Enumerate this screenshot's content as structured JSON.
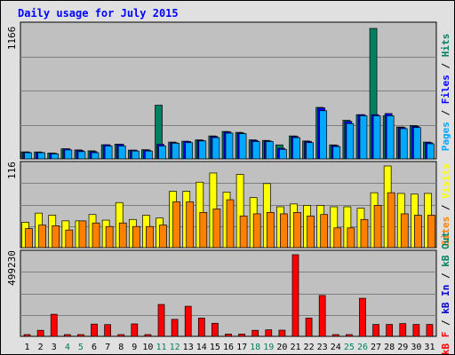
{
  "title": "Daily usage for July 2015",
  "colors": {
    "pages": "#00a8ff",
    "files": "#0000ff",
    "hits": "#008060",
    "visits": "#ffff00",
    "sites": "#ff8000",
    "kb_in": "#0000cc",
    "kb_out": "#008060",
    "kb_f": "#ff0000",
    "plot_bg": "#c0c0c0",
    "frame_bg": "#e0e0e0",
    "weekend_label": "#008060"
  },
  "chart_data": [
    {
      "type": "bar",
      "title": "",
      "ylabel": "1166",
      "ylim": [
        0,
        1166
      ],
      "categories": [
        "1",
        "2",
        "3",
        "4",
        "5",
        "6",
        "7",
        "8",
        "9",
        "10",
        "11",
        "12",
        "13",
        "14",
        "15",
        "16",
        "17",
        "18",
        "19",
        "20",
        "21",
        "22",
        "23",
        "24",
        "25",
        "26",
        "27",
        "28",
        "29",
        "30",
        "31"
      ],
      "series": [
        {
          "name": "Hits",
          "values": [
            62,
            62,
            52,
            90,
            80,
            72,
            126,
            132,
            78,
            82,
            480,
            150,
            158,
            170,
            205,
            245,
            237,
            170,
            165,
            125,
            205,
            160,
            460,
            125,
            345,
            395,
            1166,
            385,
            285,
            298,
            150
          ]
        },
        {
          "name": "Files",
          "values": [
            62,
            58,
            50,
            90,
            75,
            65,
            126,
            130,
            78,
            78,
            130,
            145,
            155,
            165,
            200,
            240,
            230,
            165,
            160,
            95,
            200,
            155,
            455,
            120,
            335,
            395,
            395,
            405,
            280,
            290,
            145
          ]
        },
        {
          "name": "Pages",
          "values": [
            55,
            55,
            45,
            80,
            65,
            55,
            115,
            115,
            70,
            70,
            115,
            140,
            145,
            160,
            190,
            230,
            225,
            155,
            155,
            85,
            190,
            145,
            430,
            110,
            315,
            385,
            385,
            385,
            270,
            280,
            135
          ]
        }
      ],
      "legend": [
        "Pages",
        "Files",
        "Hits"
      ]
    },
    {
      "type": "bar",
      "title": "",
      "ylabel": "116",
      "ylim": [
        0,
        116
      ],
      "categories": [
        "1",
        "2",
        "3",
        "4",
        "5",
        "6",
        "7",
        "8",
        "9",
        "10",
        "11",
        "12",
        "13",
        "14",
        "15",
        "16",
        "17",
        "18",
        "19",
        "20",
        "21",
        "22",
        "23",
        "24",
        "25",
        "26",
        "27",
        "28",
        "29",
        "30",
        "31"
      ],
      "series": [
        {
          "name": "Visits",
          "values": [
            36,
            49,
            46,
            38,
            38,
            47,
            39,
            64,
            40,
            46,
            42,
            80,
            80,
            93,
            106,
            79,
            104,
            71,
            91,
            58,
            62,
            60,
            60,
            58,
            58,
            56,
            78,
            116,
            77,
            76,
            77
          ]
        },
        {
          "name": "Sites",
          "values": [
            27,
            32,
            31,
            25,
            38,
            35,
            30,
            35,
            30,
            30,
            32,
            65,
            65,
            50,
            55,
            68,
            45,
            48,
            50,
            48,
            50,
            45,
            47,
            28,
            28,
            40,
            60,
            78,
            48,
            46,
            46
          ]
        }
      ],
      "legend": [
        "Sites",
        "Visits"
      ]
    },
    {
      "type": "bar",
      "title": "",
      "ylabel": "499230",
      "ylim": [
        0,
        499230
      ],
      "categories": [
        "1",
        "2",
        "3",
        "4",
        "5",
        "6",
        "7",
        "8",
        "9",
        "10",
        "11",
        "12",
        "13",
        "14",
        "15",
        "16",
        "17",
        "18",
        "19",
        "20",
        "21",
        "22",
        "23",
        "24",
        "25",
        "26",
        "27",
        "28",
        "29",
        "30",
        "31"
      ],
      "series": [
        {
          "name": "KBytes",
          "values": [
            0,
            37000,
            135000,
            0,
            0,
            75000,
            72000,
            0,
            76000,
            0,
            195000,
            104000,
            184000,
            112000,
            80000,
            14000,
            14000,
            37000,
            40000,
            38000,
            499230,
            112000,
            250000,
            0,
            0,
            233000,
            73000,
            73000,
            78000,
            73000,
            73000
          ]
        }
      ],
      "legend": [
        "kB F",
        "kB In",
        "kB Out"
      ]
    }
  ],
  "x_labels": [
    "1",
    "2",
    "3",
    "4",
    "5",
    "6",
    "7",
    "8",
    "9",
    "10",
    "11",
    "12",
    "13",
    "14",
    "15",
    "16",
    "17",
    "18",
    "19",
    "20",
    "21",
    "22",
    "23",
    "24",
    "25",
    "26",
    "27",
    "28",
    "29",
    "30",
    "31"
  ],
  "weekend_days": [
    "4",
    "5",
    "11",
    "12",
    "18",
    "19",
    "25",
    "26"
  ],
  "side_labels": {
    "top": [
      {
        "text": "Pages",
        "c": "pages"
      },
      {
        "text": " / ",
        "c": "sep"
      },
      {
        "text": "Files",
        "c": "files"
      },
      {
        "text": " / ",
        "c": "sep"
      },
      {
        "text": "Hits",
        "c": "hits"
      }
    ],
    "mid": [
      {
        "text": "Sites",
        "c": "sites"
      },
      {
        "text": " / ",
        "c": "sep"
      },
      {
        "text": "Visits",
        "c": "visits"
      }
    ],
    "bot": [
      {
        "text": "kB F",
        "c": "kb_f"
      },
      {
        "text": " / ",
        "c": "sep"
      },
      {
        "text": "kB In",
        "c": "kb_in"
      },
      {
        "text": " / ",
        "c": "sep"
      },
      {
        "text": "kB Out",
        "c": "kb_out"
      }
    ]
  }
}
